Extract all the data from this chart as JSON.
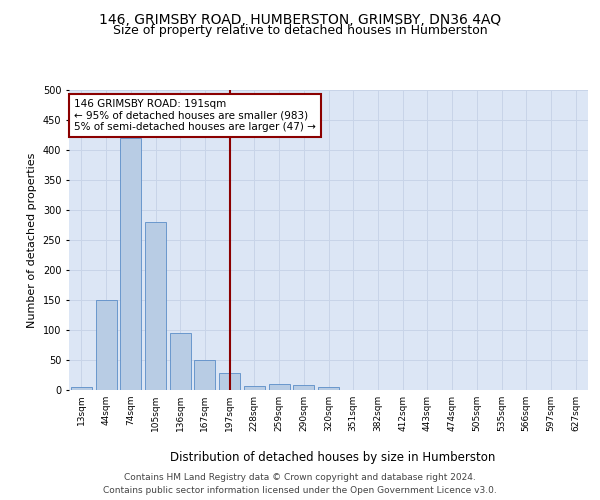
{
  "title1": "146, GRIMSBY ROAD, HUMBERSTON, GRIMSBY, DN36 4AQ",
  "title2": "Size of property relative to detached houses in Humberston",
  "xlabel": "Distribution of detached houses by size in Humberston",
  "ylabel": "Number of detached properties",
  "bin_labels": [
    "13sqm",
    "44sqm",
    "74sqm",
    "105sqm",
    "136sqm",
    "167sqm",
    "197sqm",
    "228sqm",
    "259sqm",
    "290sqm",
    "320sqm",
    "351sqm",
    "382sqm",
    "412sqm",
    "443sqm",
    "474sqm",
    "505sqm",
    "535sqm",
    "566sqm",
    "597sqm",
    "627sqm"
  ],
  "bar_heights": [
    5,
    150,
    420,
    280,
    95,
    50,
    28,
    7,
    10,
    8,
    5,
    0,
    0,
    0,
    0,
    0,
    0,
    0,
    0,
    0,
    0
  ],
  "bar_color": "#b8cce4",
  "bar_edge_color": "#5b8dc8",
  "vline_x_index": 6,
  "vline_color": "#8b0000",
  "annotation_text": "146 GRIMSBY ROAD: 191sqm\n← 95% of detached houses are smaller (983)\n5% of semi-detached houses are larger (47) →",
  "annotation_box_color": "white",
  "annotation_box_edge_color": "#8b0000",
  "ylim": [
    0,
    500
  ],
  "yticks": [
    0,
    50,
    100,
    150,
    200,
    250,
    300,
    350,
    400,
    450,
    500
  ],
  "grid_color": "#c8d4e8",
  "bg_color": "#dce6f5",
  "footer1": "Contains HM Land Registry data © Crown copyright and database right 2024.",
  "footer2": "Contains public sector information licensed under the Open Government Licence v3.0.",
  "title1_fontsize": 10,
  "title2_fontsize": 9,
  "xlabel_fontsize": 8.5,
  "ylabel_fontsize": 8,
  "tick_fontsize": 6.5,
  "annotation_fontsize": 7.5,
  "footer_fontsize": 6.5
}
